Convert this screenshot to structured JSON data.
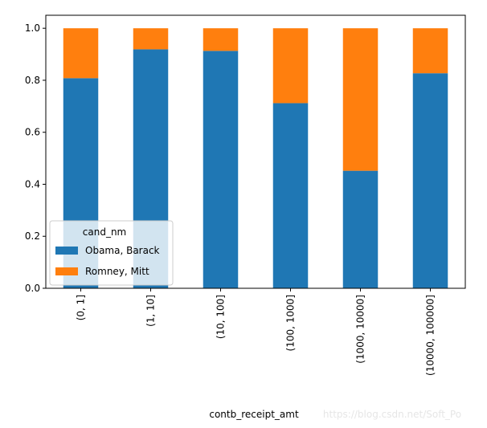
{
  "chart_data": {
    "type": "stacked_bar",
    "categories": [
      "(0, 1]",
      "(1, 10]",
      "(10, 100]",
      "(100, 1000]",
      "(1000, 10000]",
      "(10000, 100000]"
    ],
    "series": [
      {
        "name": "Obama, Barack",
        "color": "#1f77b4",
        "values": [
          0.808,
          0.919,
          0.913,
          0.712,
          0.452,
          0.827
        ]
      },
      {
        "name": "Romney, Mitt",
        "color": "#ff7f0e",
        "values": [
          0.192,
          0.081,
          0.087,
          0.288,
          0.548,
          0.173
        ]
      }
    ],
    "ylim": [
      0,
      1.05
    ],
    "yticks": [
      {
        "value": 0,
        "label": "0.0"
      },
      {
        "value": 0.2,
        "label": "0.2"
      },
      {
        "value": 0.4,
        "label": "0.4"
      },
      {
        "value": 0.6,
        "label": "0.6"
      },
      {
        "value": 0.8,
        "label": "0.8"
      },
      {
        "value": 1,
        "label": "1.0"
      }
    ],
    "x_label": "contb_receipt_amt",
    "legend_title": "cand_nm",
    "legend_position": "lower left",
    "watermark": "https://blog.csdn.net/Soft_Po"
  }
}
